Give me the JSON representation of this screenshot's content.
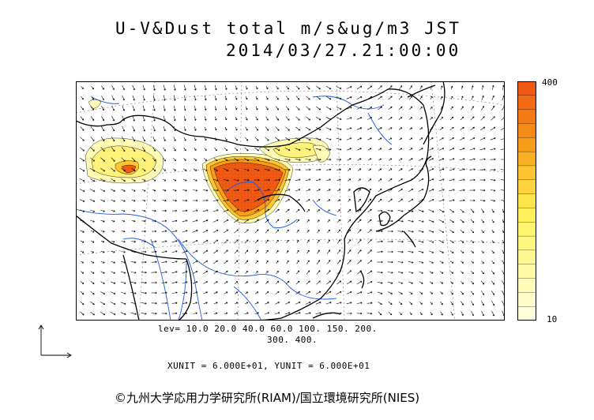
{
  "title": {
    "line1": "U-V&Dust total m/s&ug/m3 JST",
    "line2": "2014/03/27.21:00:00"
  },
  "colorbar": {
    "max_label": "400",
    "min_label": "10",
    "colors": [
      "#f05a14",
      "#f26a14",
      "#f47a14",
      "#f68a16",
      "#f89c1c",
      "#fab024",
      "#fcc430",
      "#fdd43e",
      "#fee44c",
      "#fff05c",
      "#fff46e",
      "#fff680",
      "#fff892",
      "#fffaa6",
      "#fffbb8",
      "#fffcca",
      "#fffed8"
    ]
  },
  "levels": {
    "line1": "lev= 10.0 20.0 40.0 60.0 100. 150. 200.",
    "line2": "300. 400."
  },
  "units": {
    "text": "XUNIT = 6.000E+01, YUNIT = 6.000E+01"
  },
  "copyright": {
    "text": "©九州大学応用力学研究所(RIAM)/国立環境研究所(NIES)"
  },
  "colors": {
    "coast": "#000000",
    "river": "#1e5adc",
    "grid": "#888888",
    "dust_high": "#f05a14",
    "dust_low": "#fffab4"
  }
}
